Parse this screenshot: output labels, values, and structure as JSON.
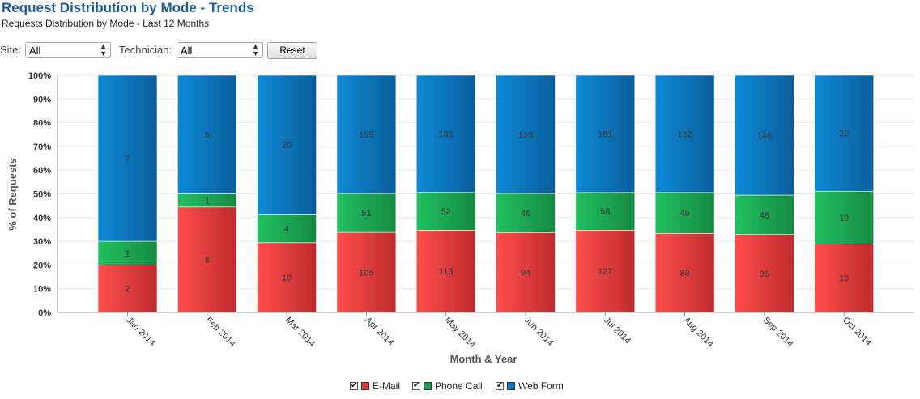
{
  "header": {
    "title": "Request Distribution by Mode - Trends",
    "subtitle": "Requests Distribution by Mode - Last 12 Months"
  },
  "filters": {
    "site_label": "Site:",
    "site_value": "All",
    "technician_label": "Technician:",
    "technician_value": "All",
    "reset_label": "Reset"
  },
  "legend_checkmark": "✔",
  "chart_data": {
    "type": "bar",
    "stacked": "percent",
    "categories": [
      "Jan 2014",
      "Feb 2014",
      "Mar 2014",
      "Apr 2014",
      "May 2014",
      "Jun 2014",
      "Jul 2014",
      "Aug 2014",
      "Sep 2014",
      "Oct 2014"
    ],
    "series": [
      {
        "name": "E-Mail",
        "color": "#e8393a",
        "values": [
          2,
          8,
          10,
          105,
          113,
          94,
          127,
          89,
          95,
          13
        ]
      },
      {
        "name": "Phone Call",
        "color": "#1aa050",
        "values": [
          1,
          1,
          4,
          51,
          52,
          46,
          58,
          46,
          48,
          10
        ]
      },
      {
        "name": "Web Form",
        "color": "#0d78c2",
        "values": [
          7,
          9,
          20,
          155,
          161,
          139,
          181,
          132,
          146,
          22
        ]
      }
    ],
    "xlabel": "Month & Year",
    "ylabel": "% of Requests",
    "yticks": [
      "0%",
      "10%",
      "20%",
      "30%",
      "40%",
      "50%",
      "60%",
      "70%",
      "80%",
      "90%",
      "100%"
    ],
    "ylim": [
      0,
      100
    ],
    "grid": true,
    "legend_position": "bottom-center"
  }
}
